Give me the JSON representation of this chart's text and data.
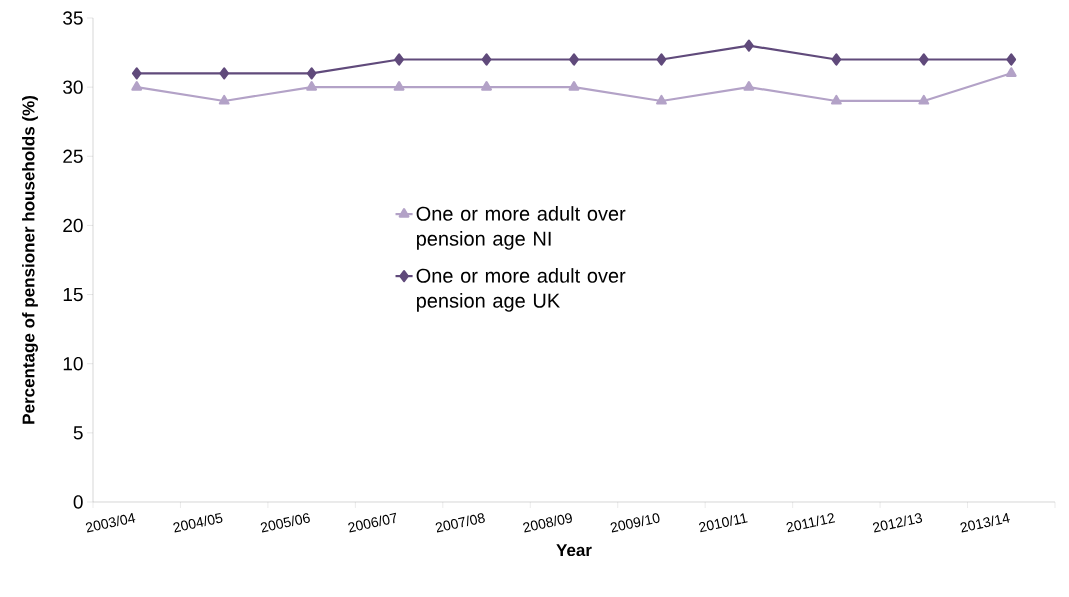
{
  "chart_data": {
    "type": "line",
    "xlabel": "Year",
    "ylabel": "Percentage of pensioner households (%)",
    "categories": [
      "2003/04",
      "2004/05",
      "2005/06",
      "2006/07",
      "2007/08",
      "2008/09",
      "2009/10",
      "2010/11",
      "2011/12",
      "2012/13",
      "2013/14"
    ],
    "series": [
      {
        "name": "One or more adult over pension age NI",
        "color": "#b3a2c7",
        "marker": "triangle",
        "values": [
          30,
          29,
          30,
          30,
          30,
          30,
          29,
          30,
          29,
          29,
          31
        ]
      },
      {
        "name": "One or more adult over pension age UK",
        "color": "#604a7b",
        "marker": "diamond",
        "values": [
          31,
          31,
          31,
          32,
          32,
          32,
          32,
          33,
          32,
          32,
          32
        ]
      }
    ],
    "ylim": [
      0,
      35
    ],
    "yticks": [
      0,
      5,
      10,
      15,
      20,
      25,
      30,
      35
    ],
    "legend": "center",
    "grid": false,
    "line_style": "solid"
  }
}
